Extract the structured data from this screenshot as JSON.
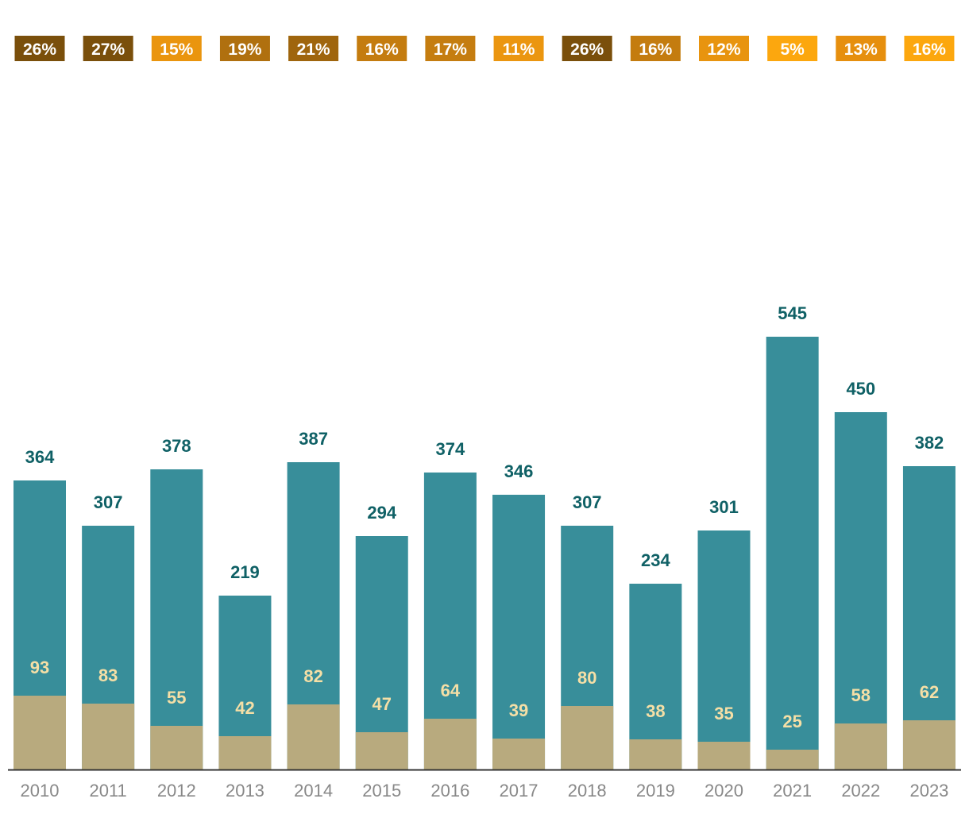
{
  "chart_data": {
    "type": "bar",
    "stacked": true,
    "categories": [
      "2010",
      "2011",
      "2012",
      "2013",
      "2014",
      "2015",
      "2016",
      "2017",
      "2018",
      "2019",
      "2020",
      "2021",
      "2022",
      "2023"
    ],
    "series": [
      {
        "values": [
          93,
          83,
          55,
          42,
          82,
          47,
          64,
          39,
          80,
          38,
          35,
          25,
          58,
          62
        ],
        "color": "#b8aa7e",
        "label_color": "#f5dfa6"
      },
      {
        "values": [
          364,
          307,
          378,
          219,
          387,
          294,
          374,
          346,
          307,
          234,
          301,
          545,
          450,
          382
        ],
        "color": "#388e9a",
        "label_color": "#106166"
      }
    ],
    "percentages": [
      "26%",
      "27%",
      "15%",
      "19%",
      "21%",
      "16%",
      "17%",
      "11%",
      "26%",
      "16%",
      "12%",
      "5%",
      "13%",
      "16%"
    ],
    "percentage_colors": [
      "#7a4f0b",
      "#7a4f0b",
      "#ea950e",
      "#b0700f",
      "#9f650d",
      "#c47c0f",
      "#c57d10",
      "#eb9610",
      "#7a4f0b",
      "#c47c0f",
      "#e8940f",
      "#fca70e",
      "#e68f0e",
      "#fca70e"
    ],
    "ylim": [
      0,
      638
    ],
    "grid": false,
    "legend": "none"
  }
}
